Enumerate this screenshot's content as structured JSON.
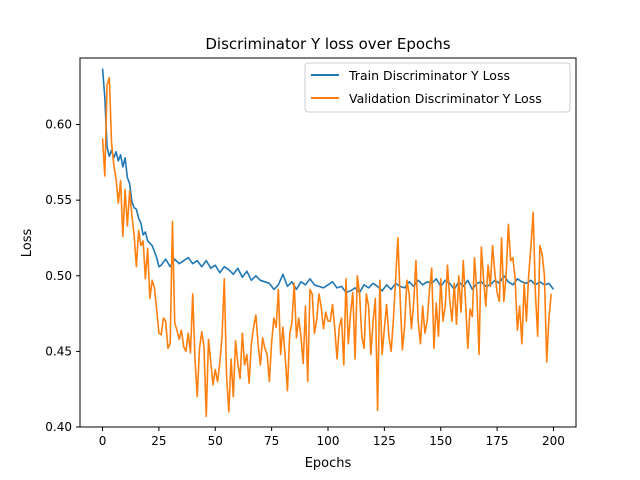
{
  "chart_data": {
    "type": "line",
    "title": "Discriminator Y loss over Epochs",
    "xlabel": "Epochs",
    "ylabel": "Loss",
    "xlim": [
      -10,
      210
    ],
    "ylim": [
      0.4,
      0.644
    ],
    "xticks": [
      0,
      25,
      50,
      75,
      100,
      125,
      150,
      175,
      200
    ],
    "xtick_labels": [
      "0",
      "25",
      "50",
      "75",
      "100",
      "125",
      "150",
      "175",
      "200"
    ],
    "yticks": [
      0.4,
      0.45,
      0.5,
      0.55,
      0.6
    ],
    "ytick_labels": [
      "0.40",
      "0.45",
      "0.50",
      "0.55",
      "0.60"
    ],
    "grid": false,
    "legend_position": "top-right",
    "series": [
      {
        "name": "Train Discriminator Y Loss",
        "color": "#1f77b4",
        "points": [
          [
            0,
            0.637
          ],
          [
            1,
            0.618
          ],
          [
            2,
            0.585
          ],
          [
            3,
            0.579
          ],
          [
            4,
            0.583
          ],
          [
            5,
            0.578
          ],
          [
            6,
            0.582
          ],
          [
            7,
            0.576
          ],
          [
            8,
            0.58
          ],
          [
            9,
            0.572
          ],
          [
            10,
            0.578
          ],
          [
            11,
            0.565
          ],
          [
            12,
            0.561
          ],
          [
            13,
            0.549
          ],
          [
            14,
            0.545
          ],
          [
            15,
            0.544
          ],
          [
            16,
            0.538
          ],
          [
            17,
            0.535
          ],
          [
            18,
            0.527
          ],
          [
            19,
            0.529
          ],
          [
            20,
            0.523
          ],
          [
            22,
            0.52
          ],
          [
            24,
            0.512
          ],
          [
            25,
            0.506
          ],
          [
            26,
            0.507
          ],
          [
            28,
            0.511
          ],
          [
            30,
            0.506
          ],
          [
            32,
            0.511
          ],
          [
            34,
            0.508
          ],
          [
            36,
            0.51
          ],
          [
            38,
            0.512
          ],
          [
            40,
            0.508
          ],
          [
            42,
            0.51
          ],
          [
            44,
            0.506
          ],
          [
            46,
            0.51
          ],
          [
            48,
            0.505
          ],
          [
            50,
            0.507
          ],
          [
            52,
            0.502
          ],
          [
            54,
            0.506
          ],
          [
            56,
            0.504
          ],
          [
            58,
            0.501
          ],
          [
            60,
            0.505
          ],
          [
            62,
            0.499
          ],
          [
            64,
            0.503
          ],
          [
            66,
            0.497
          ],
          [
            68,
            0.5
          ],
          [
            70,
            0.497
          ],
          [
            72,
            0.496
          ],
          [
            74,
            0.495
          ],
          [
            76,
            0.491
          ],
          [
            78,
            0.494
          ],
          [
            80,
            0.501
          ],
          [
            82,
            0.493
          ],
          [
            84,
            0.496
          ],
          [
            86,
            0.491
          ],
          [
            88,
            0.496
          ],
          [
            90,
            0.494
          ],
          [
            92,
            0.498
          ],
          [
            94,
            0.494
          ],
          [
            96,
            0.493
          ],
          [
            98,
            0.492
          ],
          [
            100,
            0.494
          ],
          [
            102,
            0.496
          ],
          [
            104,
            0.492
          ],
          [
            106,
            0.493
          ],
          [
            108,
            0.489
          ],
          [
            110,
            0.49
          ],
          [
            112,
            0.492
          ],
          [
            114,
            0.489
          ],
          [
            116,
            0.494
          ],
          [
            118,
            0.492
          ],
          [
            120,
            0.495
          ],
          [
            122,
            0.493
          ],
          [
            124,
            0.49
          ],
          [
            126,
            0.494
          ],
          [
            128,
            0.491
          ],
          [
            130,
            0.495
          ],
          [
            132,
            0.493
          ],
          [
            134,
            0.492
          ],
          [
            136,
            0.496
          ],
          [
            138,
            0.493
          ],
          [
            140,
            0.497
          ],
          [
            142,
            0.494
          ],
          [
            144,
            0.496
          ],
          [
            146,
            0.495
          ],
          [
            148,
            0.498
          ],
          [
            150,
            0.493
          ],
          [
            152,
            0.497
          ],
          [
            154,
            0.495
          ],
          [
            156,
            0.491
          ],
          [
            158,
            0.496
          ],
          [
            160,
            0.493
          ],
          [
            162,
            0.497
          ],
          [
            164,
            0.491
          ],
          [
            166,
            0.495
          ],
          [
            168,
            0.496
          ],
          [
            170,
            0.493
          ],
          [
            172,
            0.494
          ],
          [
            174,
            0.497
          ],
          [
            176,
            0.495
          ],
          [
            178,
            0.5
          ],
          [
            180,
            0.496
          ],
          [
            182,
            0.494
          ],
          [
            184,
            0.498
          ],
          [
            186,
            0.496
          ],
          [
            188,
            0.495
          ],
          [
            190,
            0.497
          ],
          [
            192,
            0.494
          ],
          [
            194,
            0.496
          ],
          [
            196,
            0.494
          ],
          [
            198,
            0.495
          ],
          [
            200,
            0.491
          ]
        ]
      },
      {
        "name": "Validation Discriminator Y Loss",
        "color": "#ff7f0e",
        "points": [
          [
            0,
            0.591
          ],
          [
            1,
            0.566
          ],
          [
            2,
            0.626
          ],
          [
            3,
            0.631
          ],
          [
            4,
            0.588
          ],
          [
            5,
            0.573
          ],
          [
            6,
            0.564
          ],
          [
            7,
            0.548
          ],
          [
            8,
            0.563
          ],
          [
            9,
            0.526
          ],
          [
            10,
            0.557
          ],
          [
            11,
            0.533
          ],
          [
            12,
            0.556
          ],
          [
            13,
            0.54
          ],
          [
            14,
            0.527
          ],
          [
            15,
            0.506
          ],
          [
            16,
            0.53
          ],
          [
            17,
            0.52
          ],
          [
            18,
            0.523
          ],
          [
            19,
            0.498
          ],
          [
            20,
            0.518
          ],
          [
            21,
            0.485
          ],
          [
            22,
            0.497
          ],
          [
            23,
            0.492
          ],
          [
            24,
            0.478
          ],
          [
            25,
            0.462
          ],
          [
            26,
            0.461
          ],
          [
            27,
            0.472
          ],
          [
            28,
            0.47
          ],
          [
            29,
            0.452
          ],
          [
            30,
            0.455
          ],
          [
            31,
            0.536
          ],
          [
            32,
            0.469
          ],
          [
            33,
            0.464
          ],
          [
            34,
            0.458
          ],
          [
            35,
            0.464
          ],
          [
            36,
            0.453
          ],
          [
            37,
            0.45
          ],
          [
            38,
            0.462
          ],
          [
            39,
            0.449
          ],
          [
            40,
            0.488
          ],
          [
            41,
            0.445
          ],
          [
            42,
            0.42
          ],
          [
            43,
            0.452
          ],
          [
            44,
            0.463
          ],
          [
            45,
            0.453
          ],
          [
            46,
            0.407
          ],
          [
            47,
            0.458
          ],
          [
            48,
            0.443
          ],
          [
            49,
            0.428
          ],
          [
            50,
            0.438
          ],
          [
            51,
            0.43
          ],
          [
            52,
            0.442
          ],
          [
            53,
            0.46
          ],
          [
            54,
            0.498
          ],
          [
            55,
            0.434
          ],
          [
            56,
            0.41
          ],
          [
            57,
            0.445
          ],
          [
            58,
            0.42
          ],
          [
            59,
            0.457
          ],
          [
            60,
            0.442
          ],
          [
            61,
            0.432
          ],
          [
            62,
            0.462
          ],
          [
            63,
            0.441
          ],
          [
            64,
            0.448
          ],
          [
            65,
            0.429
          ],
          [
            66,
            0.455
          ],
          [
            67,
            0.466
          ],
          [
            68,
            0.474
          ],
          [
            69,
            0.455
          ],
          [
            70,
            0.441
          ],
          [
            71,
            0.459
          ],
          [
            72,
            0.452
          ],
          [
            73,
            0.448
          ],
          [
            74,
            0.43
          ],
          [
            75,
            0.456
          ],
          [
            76,
            0.472
          ],
          [
            77,
            0.466
          ],
          [
            78,
            0.491
          ],
          [
            79,
            0.448
          ],
          [
            80,
            0.466
          ],
          [
            81,
            0.447
          ],
          [
            82,
            0.424
          ],
          [
            83,
            0.461
          ],
          [
            84,
            0.469
          ],
          [
            85,
            0.495
          ],
          [
            86,
            0.459
          ],
          [
            87,
            0.472
          ],
          [
            88,
            0.46
          ],
          [
            89,
            0.442
          ],
          [
            90,
            0.48
          ],
          [
            91,
            0.43
          ],
          [
            92,
            0.491
          ],
          [
            93,
            0.488
          ],
          [
            94,
            0.462
          ],
          [
            95,
            0.471
          ],
          [
            96,
            0.488
          ],
          [
            97,
            0.479
          ],
          [
            98,
            0.465
          ],
          [
            99,
            0.476
          ],
          [
            100,
            0.47
          ],
          [
            101,
            0.47
          ],
          [
            102,
            0.481
          ],
          [
            103,
            0.465
          ],
          [
            104,
            0.445
          ],
          [
            105,
            0.466
          ],
          [
            106,
            0.472
          ],
          [
            107,
            0.441
          ],
          [
            108,
            0.498
          ],
          [
            109,
            0.455
          ],
          [
            110,
            0.475
          ],
          [
            111,
            0.489
          ],
          [
            112,
            0.445
          ],
          [
            113,
            0.5
          ],
          [
            114,
            0.488
          ],
          [
            115,
            0.46
          ],
          [
            116,
            0.452
          ],
          [
            117,
            0.488
          ],
          [
            118,
            0.48
          ],
          [
            119,
            0.448
          ],
          [
            120,
            0.47
          ],
          [
            121,
            0.485
          ],
          [
            122,
            0.411
          ],
          [
            123,
            0.497
          ],
          [
            124,
            0.448
          ],
          [
            125,
            0.465
          ],
          [
            126,
            0.481
          ],
          [
            127,
            0.46
          ],
          [
            128,
            0.45
          ],
          [
            129,
            0.471
          ],
          [
            130,
            0.498
          ],
          [
            131,
            0.525
          ],
          [
            132,
            0.485
          ],
          [
            133,
            0.451
          ],
          [
            134,
            0.467
          ],
          [
            135,
            0.497
          ],
          [
            136,
            0.488
          ],
          [
            137,
            0.465
          ],
          [
            138,
            0.482
          ],
          [
            139,
            0.51
          ],
          [
            140,
            0.47
          ],
          [
            141,
            0.455
          ],
          [
            142,
            0.48
          ],
          [
            143,
            0.462
          ],
          [
            144,
            0.47
          ],
          [
            145,
            0.49
          ],
          [
            146,
            0.505
          ],
          [
            147,
            0.452
          ],
          [
            148,
            0.482
          ],
          [
            149,
            0.46
          ],
          [
            150,
            0.498
          ],
          [
            151,
            0.47
          ],
          [
            152,
            0.48
          ],
          [
            153,
            0.507
          ],
          [
            154,
            0.484
          ],
          [
            155,
            0.47
          ],
          [
            156,
            0.495
          ],
          [
            157,
            0.468
          ],
          [
            158,
            0.5
          ],
          [
            159,
            0.476
          ],
          [
            160,
            0.51
          ],
          [
            161,
            0.483
          ],
          [
            162,
            0.452
          ],
          [
            163,
            0.478
          ],
          [
            164,
            0.473
          ],
          [
            165,
            0.512
          ],
          [
            166,
            0.49
          ],
          [
            167,
            0.448
          ],
          [
            168,
            0.519
          ],
          [
            169,
            0.498
          ],
          [
            170,
            0.48
          ],
          [
            171,
            0.507
          ],
          [
            172,
            0.493
          ],
          [
            173,
            0.52
          ],
          [
            174,
            0.502
          ],
          [
            175,
            0.489
          ],
          [
            176,
            0.483
          ],
          [
            177,
            0.525
          ],
          [
            178,
            0.483
          ],
          [
            179,
            0.5
          ],
          [
            180,
            0.534
          ],
          [
            181,
            0.51
          ],
          [
            182,
            0.512
          ],
          [
            183,
            0.498
          ],
          [
            184,
            0.464
          ],
          [
            185,
            0.48
          ],
          [
            186,
            0.455
          ],
          [
            187,
            0.495
          ],
          [
            188,
            0.47
          ],
          [
            189,
            0.5
          ],
          [
            190,
            0.519
          ],
          [
            191,
            0.542
          ],
          [
            192,
            0.488
          ],
          [
            193,
            0.46
          ],
          [
            194,
            0.52
          ],
          [
            195,
            0.514
          ],
          [
            196,
            0.5
          ],
          [
            197,
            0.443
          ],
          [
            198,
            0.472
          ],
          [
            199,
            0.488
          ]
        ]
      }
    ]
  }
}
